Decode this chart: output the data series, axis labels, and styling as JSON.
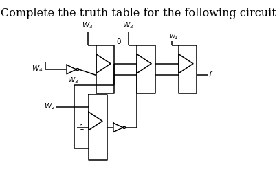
{
  "title": "Complete the truth table for the following circuit",
  "title_fontsize": 11.5,
  "bg_color": "#ffffff",
  "fg_color": "#000000",
  "fig_width": 4.03,
  "fig_height": 2.52,
  "dpi": 100,
  "lw": 1.1
}
